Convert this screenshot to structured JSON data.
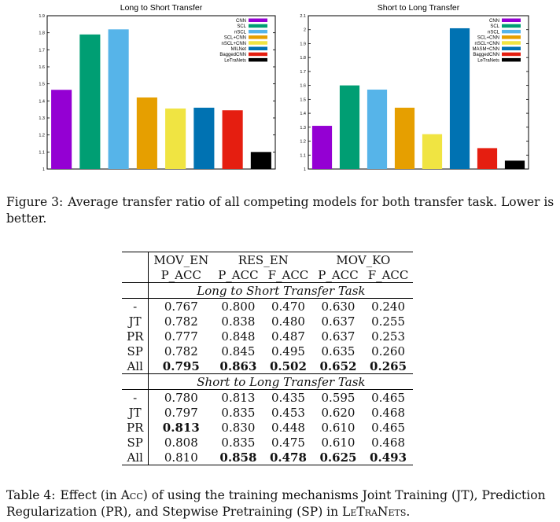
{
  "figure": {
    "label": "Figure 3:",
    "text": "Average transfer ratio of all competing models for both transfer task. Lower is better."
  },
  "chart_data": [
    {
      "type": "bar",
      "title": "Long to Short Transfer",
      "categories": [
        "CNN",
        "SCL",
        "nSCL",
        "SCL+CNN",
        "nSCL+CNN",
        "MILNet",
        "BaggedCNN",
        "LeTraNets"
      ],
      "values": [
        1.465,
        1.79,
        1.82,
        1.42,
        1.355,
        1.36,
        1.345,
        1.1
      ],
      "colors": [
        "#9400d3",
        "#009e73",
        "#56b4e9",
        "#e69f00",
        "#f0e442",
        "#0072b2",
        "#e51e10",
        "#000000"
      ],
      "ylim": [
        1,
        1.9
      ],
      "yticks": [
        "1",
        "1.1",
        "1.2",
        "1.3",
        "1.4",
        "1.5",
        "1.6",
        "1.7",
        "1.8",
        "1.9"
      ],
      "legend": "top-right",
      "grid": false
    },
    {
      "type": "bar",
      "title": "Short to Long Transfer",
      "categories": [
        "CNN",
        "SCL",
        "nSCL",
        "SCL+CNN",
        "nSCL+CNN",
        "MASM+CNN",
        "BaggedCNN",
        "LeTraNets"
      ],
      "values": [
        1.31,
        1.6,
        1.57,
        1.44,
        1.25,
        2.01,
        1.15,
        1.06
      ],
      "colors": [
        "#9400d3",
        "#009e73",
        "#56b4e9",
        "#e69f00",
        "#f0e442",
        "#0072b2",
        "#e51e10",
        "#000000"
      ],
      "ylim": [
        1,
        2.1
      ],
      "yticks": [
        "1",
        "1.1",
        "1.2",
        "1.3",
        "1.4",
        "1.5",
        "1.6",
        "1.7",
        "1.8",
        "1.9",
        "2",
        "2.1"
      ],
      "legend": "top-right",
      "grid": false
    }
  ],
  "table": {
    "header1": [
      "MOV_EN",
      "RES_EN",
      "MOV_KO"
    ],
    "header2": [
      "P_ACC",
      "P_ACC",
      "F_ACC",
      "P_ACC",
      "F_ACC"
    ],
    "sections": [
      {
        "title": "Long to Short Transfer Task",
        "rows": [
          {
            "label": "-",
            "cells": [
              "0.767",
              "0.800",
              "0.470",
              "0.630",
              "0.240"
            ],
            "bold": [
              false,
              false,
              false,
              false,
              false
            ]
          },
          {
            "label": "JT",
            "cells": [
              "0.782",
              "0.838",
              "0.480",
              "0.637",
              "0.255"
            ],
            "bold": [
              false,
              false,
              false,
              false,
              false
            ]
          },
          {
            "label": "PR",
            "cells": [
              "0.777",
              "0.848",
              "0.487",
              "0.637",
              "0.253"
            ],
            "bold": [
              false,
              false,
              false,
              false,
              false
            ]
          },
          {
            "label": "SP",
            "cells": [
              "0.782",
              "0.845",
              "0.495",
              "0.635",
              "0.260"
            ],
            "bold": [
              false,
              false,
              false,
              false,
              false
            ]
          },
          {
            "label": "All",
            "cells": [
              "0.795",
              "0.863",
              "0.502",
              "0.652",
              "0.265"
            ],
            "bold": [
              true,
              true,
              true,
              true,
              true
            ]
          }
        ]
      },
      {
        "title": "Short to Long Transfer Task",
        "rows": [
          {
            "label": "-",
            "cells": [
              "0.780",
              "0.813",
              "0.435",
              "0.595",
              "0.465"
            ],
            "bold": [
              false,
              false,
              false,
              false,
              false
            ]
          },
          {
            "label": "JT",
            "cells": [
              "0.797",
              "0.835",
              "0.453",
              "0.620",
              "0.468"
            ],
            "bold": [
              false,
              false,
              false,
              false,
              false
            ]
          },
          {
            "label": "PR",
            "cells": [
              "0.813",
              "0.830",
              "0.448",
              "0.610",
              "0.465"
            ],
            "bold": [
              true,
              false,
              false,
              false,
              false
            ]
          },
          {
            "label": "SP",
            "cells": [
              "0.808",
              "0.835",
              "0.475",
              "0.610",
              "0.468"
            ],
            "bold": [
              false,
              false,
              false,
              false,
              false
            ]
          },
          {
            "label": "All",
            "cells": [
              "0.810",
              "0.858",
              "0.478",
              "0.625",
              "0.493"
            ],
            "bold": [
              false,
              true,
              true,
              true,
              true
            ]
          }
        ]
      }
    ]
  },
  "table_caption": {
    "label": "Table 4:",
    "text_before": "Effect (in ",
    "metric": "Acc",
    "text_middle": ") of using the training mechanisms Joint Training (JT), Prediction Regularization (PR), and Stepwise Pretraining (SP) in ",
    "model": "LeTraNets",
    "text_after": "."
  }
}
